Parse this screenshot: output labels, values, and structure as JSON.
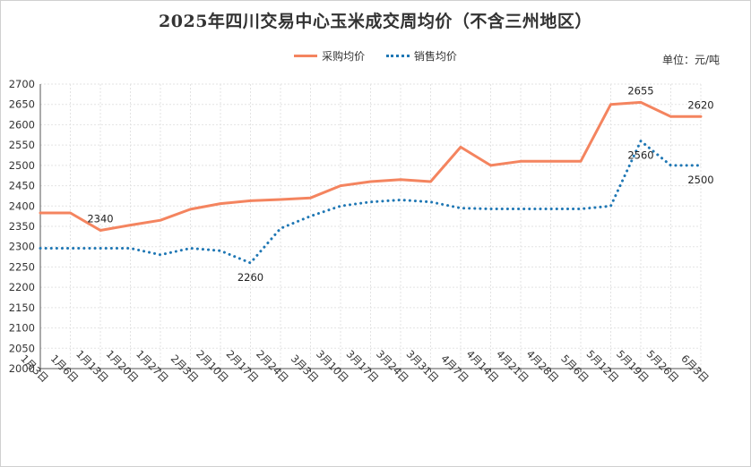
{
  "chart_data": {
    "type": "line",
    "title": "2025年四川交易中心玉米成交周均价（不含三州地区）",
    "unit": "单位：元/吨",
    "categories": [
      "1月3日",
      "1月6日",
      "1月13日",
      "1月20日",
      "1月27日",
      "2月3日",
      "2月10日",
      "2月17日",
      "2月24日",
      "3月3日",
      "3月10日",
      "3月17日",
      "3月24日",
      "3月31日",
      "4月7日",
      "4月14日",
      "4月21日",
      "4月28日",
      "5月6日",
      "5月12日",
      "5月19日",
      "5月26日",
      "6月3日"
    ],
    "series": [
      {
        "name": "采购均价",
        "color": "#F4845F",
        "style": "solid",
        "values": [
          2383,
          2383,
          2340,
          2353,
          2365,
          2392,
          2406,
          2413,
          2416,
          2420,
          2450,
          2460,
          2465,
          2460,
          2545,
          2500,
          2510,
          2510,
          2510,
          2650,
          2655,
          2620,
          2620
        ]
      },
      {
        "name": "销售均价",
        "color": "#1F77B4",
        "style": "dotted",
        "values": [
          2296,
          2296,
          2296,
          2296,
          2280,
          2296,
          2290,
          2260,
          2345,
          2375,
          2400,
          2410,
          2415,
          2410,
          2395,
          2393,
          2393,
          2393,
          2393,
          2400,
          2560,
          2500,
          2500
        ]
      }
    ],
    "data_labels": [
      {
        "series": 0,
        "index": 2,
        "text": "2340",
        "position": "above"
      },
      {
        "series": 0,
        "index": 20,
        "text": "2655",
        "position": "above"
      },
      {
        "series": 0,
        "index": 22,
        "text": "2620",
        "position": "above"
      },
      {
        "series": 1,
        "index": 7,
        "text": "2260",
        "position": "below"
      },
      {
        "series": 1,
        "index": 20,
        "text": "2560",
        "position": "below"
      },
      {
        "series": 1,
        "index": 22,
        "text": "2500",
        "position": "below"
      }
    ],
    "ylim": [
      2000,
      2700
    ],
    "yticks": [
      2000,
      2050,
      2100,
      2150,
      2200,
      2250,
      2300,
      2350,
      2400,
      2450,
      2500,
      2550,
      2600,
      2650,
      2700
    ],
    "grid": true,
    "legend_position": "top-center"
  }
}
